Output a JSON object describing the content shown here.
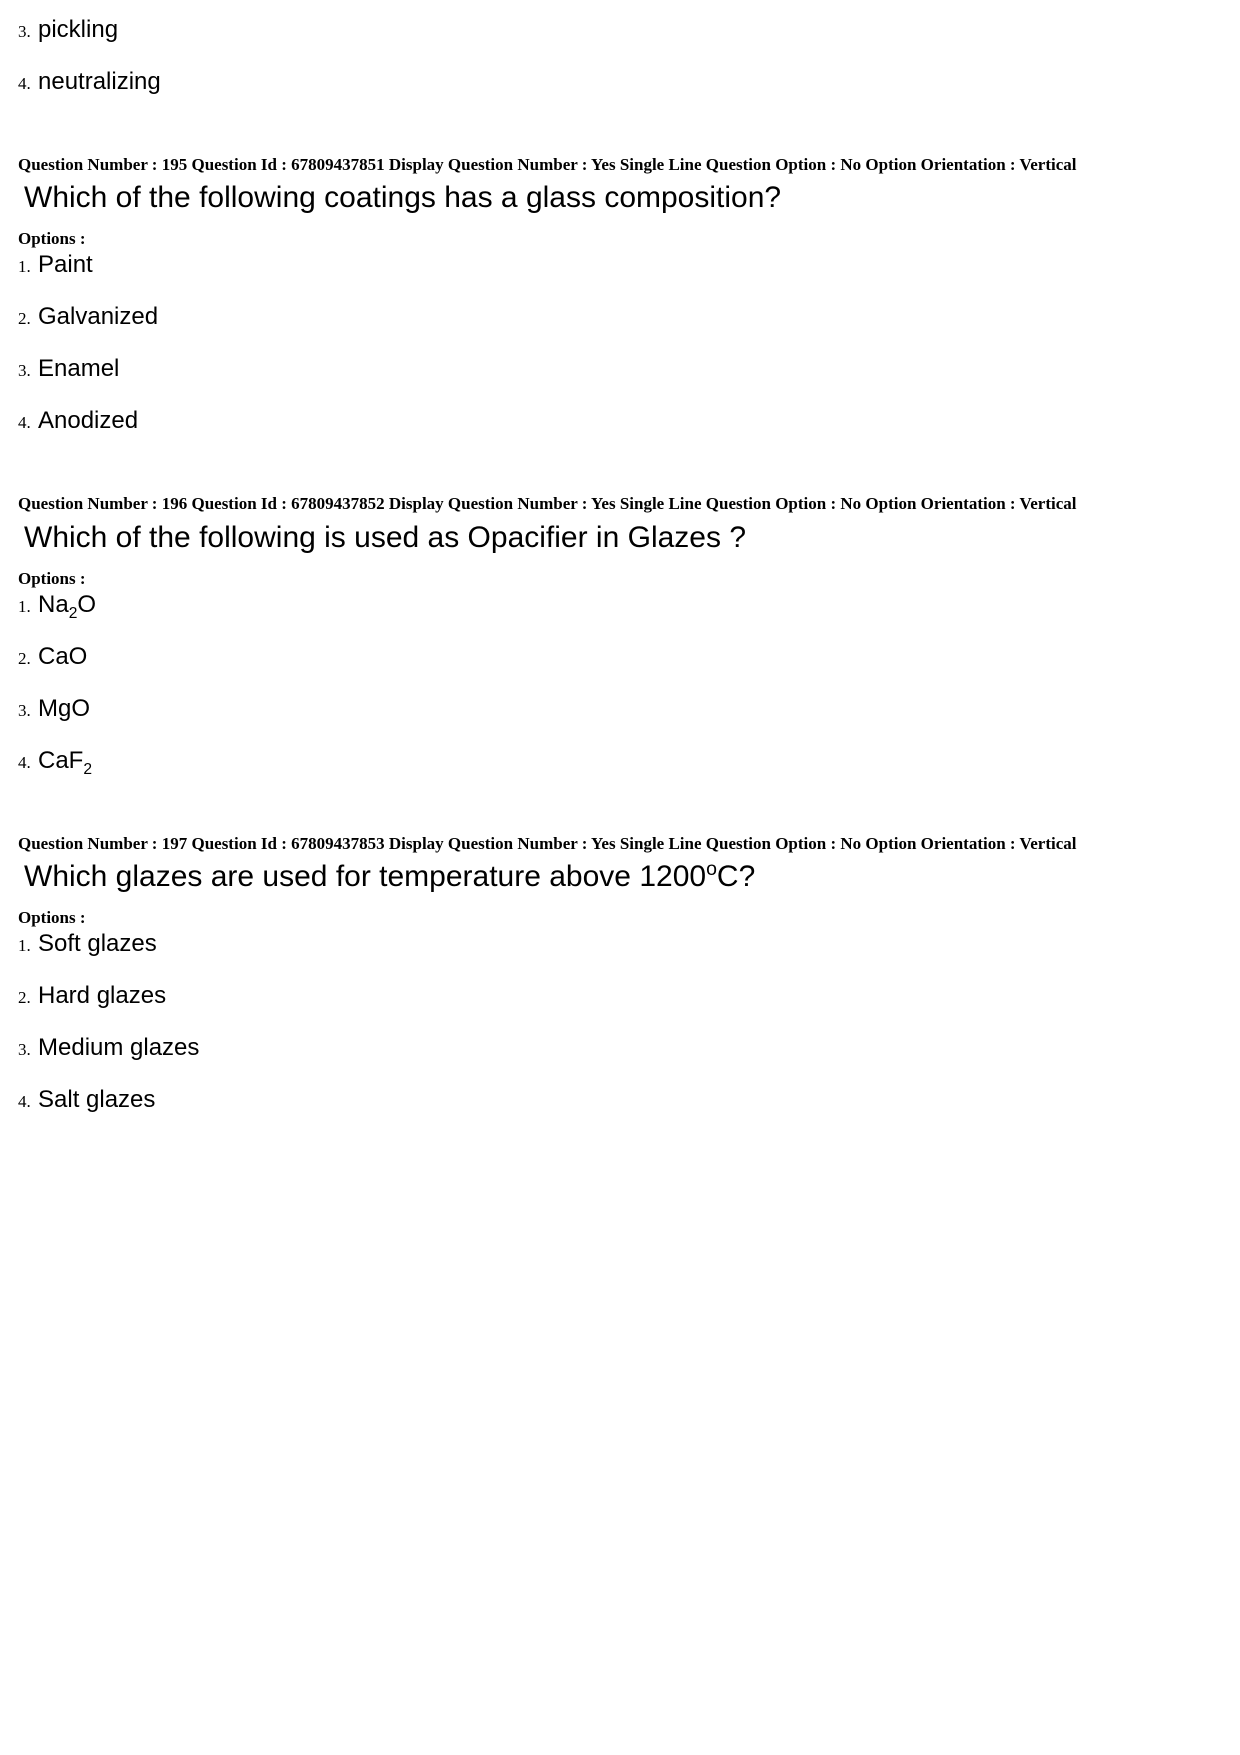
{
  "partial_options_top": [
    {
      "num": "3.",
      "text": "pickling"
    },
    {
      "num": "4.",
      "text": "neutralizing"
    }
  ],
  "questions": [
    {
      "meta": "Question Number : 195  Question Id : 67809437851  Display Question Number : Yes  Single Line Question Option : No  Option Orientation : Vertical",
      "text_html": "Which of the following coatings has a glass composition?",
      "options_label": "Options :",
      "options": [
        {
          "num": "1.",
          "text_html": "Paint"
        },
        {
          "num": "2.",
          "text_html": "Galvanized"
        },
        {
          "num": "3.",
          "text_html": "Enamel"
        },
        {
          "num": "4.",
          "text_html": "Anodized"
        }
      ]
    },
    {
      "meta": "Question Number : 196  Question Id : 67809437852  Display Question Number : Yes  Single Line Question Option : No  Option Orientation : Vertical",
      "text_html": "Which of the following is used as Opacifier in Glazes ?",
      "options_label": "Options :",
      "options": [
        {
          "num": "1.",
          "text_html": "Na<span class=\"sub\">2</span>O"
        },
        {
          "num": "2.",
          "text_html": "CaO"
        },
        {
          "num": "3.",
          "text_html": "MgO"
        },
        {
          "num": "4.",
          "text_html": "CaF<span class=\"sub\">2</span>"
        }
      ]
    },
    {
      "meta": "Question Number : 197  Question Id : 67809437853  Display Question Number : Yes  Single Line Question Option : No  Option Orientation : Vertical",
      "text_html": "Which glazes are used for temperature above 1200<span class=\"sup\">o</span>C?",
      "options_label": "Options :",
      "options": [
        {
          "num": "1.",
          "text_html": "Soft glazes"
        },
        {
          "num": "2.",
          "text_html": "Hard glazes"
        },
        {
          "num": "3.",
          "text_html": "Medium glazes"
        },
        {
          "num": "4.",
          "text_html": "Salt glazes"
        }
      ]
    }
  ]
}
